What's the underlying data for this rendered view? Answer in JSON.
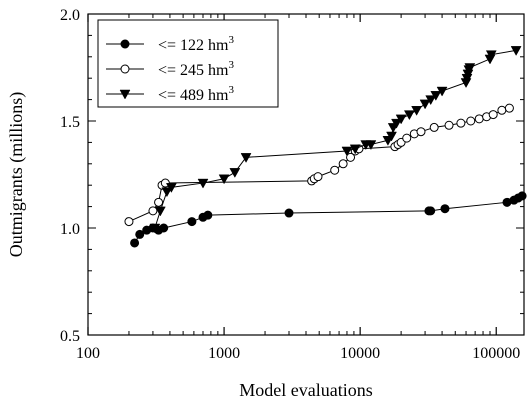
{
  "chart_data": {
    "type": "line",
    "xlabel": "Model evaluations",
    "ylabel": "Outmigrants (millions)",
    "x_scale": "log",
    "xlim": [
      100,
      160000
    ],
    "ylim": [
      0.5,
      2.0
    ],
    "x_ticks": [
      100,
      1000,
      10000,
      100000
    ],
    "x_tick_labels": [
      "100",
      "1000",
      "10000",
      "100000"
    ],
    "y_ticks": [
      0.5,
      1.0,
      1.5,
      2.0
    ],
    "y_tick_labels": [
      "0.5",
      "1.0",
      "1.5",
      "2.0"
    ],
    "grid": false,
    "legend_position": "top-left",
    "series": [
      {
        "name": "<= 122 hm",
        "name_sup": "3",
        "marker": "filled-circle",
        "points": [
          [
            220,
            0.93
          ],
          [
            240,
            0.97
          ],
          [
            270,
            0.99
          ],
          [
            300,
            1.0
          ],
          [
            330,
            0.99
          ],
          [
            360,
            1.0
          ],
          [
            580,
            1.03
          ],
          [
            700,
            1.05
          ],
          [
            760,
            1.06
          ],
          [
            3000,
            1.07
          ],
          [
            32000,
            1.08
          ],
          [
            33000,
            1.08
          ],
          [
            42000,
            1.09
          ],
          [
            120000,
            1.12
          ],
          [
            135000,
            1.13
          ],
          [
            145000,
            1.14
          ],
          [
            155000,
            1.15
          ]
        ]
      },
      {
        "name": "<= 245 hm",
        "name_sup": "3",
        "marker": "open-circle",
        "points": [
          [
            200,
            1.03
          ],
          [
            300,
            1.08
          ],
          [
            330,
            1.12
          ],
          [
            350,
            1.2
          ],
          [
            370,
            1.21
          ],
          [
            4400,
            1.22
          ],
          [
            4600,
            1.23
          ],
          [
            4900,
            1.24
          ],
          [
            6500,
            1.27
          ],
          [
            7500,
            1.3
          ],
          [
            8500,
            1.33
          ],
          [
            9200,
            1.36
          ],
          [
            9800,
            1.37
          ],
          [
            18000,
            1.38
          ],
          [
            19000,
            1.39
          ],
          [
            20000,
            1.4
          ],
          [
            22000,
            1.42
          ],
          [
            25000,
            1.44
          ],
          [
            28000,
            1.45
          ],
          [
            35000,
            1.47
          ],
          [
            45000,
            1.48
          ],
          [
            55000,
            1.49
          ],
          [
            65000,
            1.5
          ],
          [
            75000,
            1.51
          ],
          [
            85000,
            1.52
          ],
          [
            95000,
            1.53
          ],
          [
            110000,
            1.55
          ],
          [
            125000,
            1.56
          ]
        ]
      },
      {
        "name": "<= 489 hm",
        "name_sup": "3",
        "marker": "filled-triangle-down",
        "points": [
          [
            310,
            1.0
          ],
          [
            340,
            1.08
          ],
          [
            380,
            1.17
          ],
          [
            410,
            1.19
          ],
          [
            700,
            1.21
          ],
          [
            1000,
            1.23
          ],
          [
            1200,
            1.26
          ],
          [
            1450,
            1.33
          ],
          [
            8000,
            1.36
          ],
          [
            9200,
            1.37
          ],
          [
            11000,
            1.39
          ],
          [
            12000,
            1.39
          ],
          [
            16000,
            1.41
          ],
          [
            17000,
            1.43
          ],
          [
            17500,
            1.47
          ],
          [
            18500,
            1.49
          ],
          [
            20000,
            1.51
          ],
          [
            23000,
            1.53
          ],
          [
            26000,
            1.55
          ],
          [
            30000,
            1.58
          ],
          [
            33000,
            1.6
          ],
          [
            36000,
            1.62
          ],
          [
            40000,
            1.64
          ],
          [
            60000,
            1.68
          ],
          [
            61000,
            1.7
          ],
          [
            62000,
            1.72
          ],
          [
            63000,
            1.74
          ],
          [
            64000,
            1.75
          ],
          [
            90000,
            1.79
          ],
          [
            92000,
            1.81
          ],
          [
            140000,
            1.83
          ]
        ]
      }
    ]
  }
}
